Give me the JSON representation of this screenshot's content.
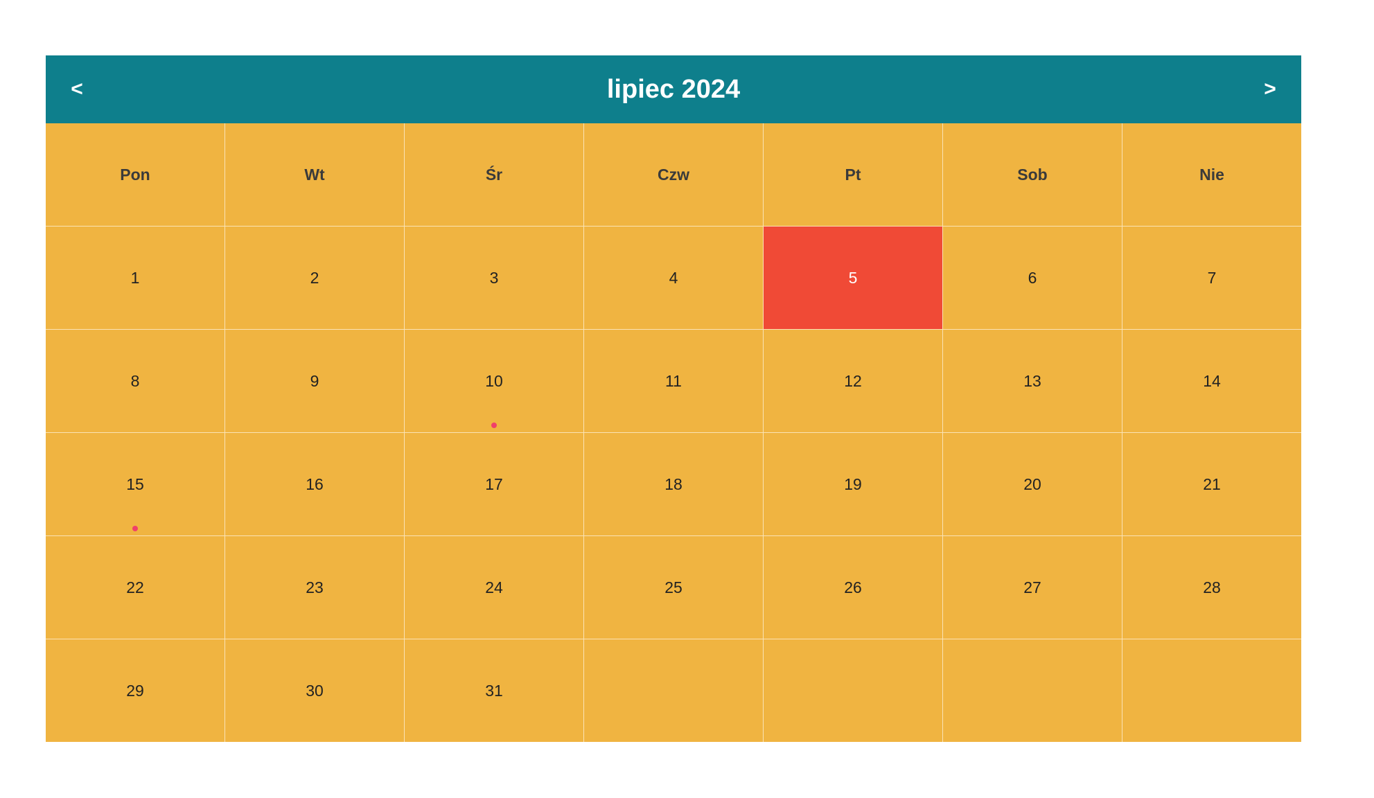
{
  "header": {
    "title": "lipiec 2024",
    "prev_label": "<",
    "next_label": ">"
  },
  "weekdays": [
    "Pon",
    "Wt",
    "Śr",
    "Czw",
    "Pt",
    "Sob",
    "Nie"
  ],
  "weeks": [
    [
      "1",
      "2",
      "3",
      "4",
      "5",
      "6",
      "7"
    ],
    [
      "8",
      "9",
      "10",
      "11",
      "12",
      "13",
      "14"
    ],
    [
      "15",
      "16",
      "17",
      "18",
      "19",
      "20",
      "21"
    ],
    [
      "22",
      "23",
      "24",
      "25",
      "26",
      "27",
      "28"
    ],
    [
      "29",
      "30",
      "31",
      "",
      "",
      "",
      ""
    ]
  ],
  "today": "5",
  "event_days": [
    "10",
    "15"
  ],
  "colors": {
    "header_bg": "#0e7f8c",
    "cell_bg": "#f0b441",
    "today_bg": "#f04a36",
    "event_dot": "#f0406a"
  }
}
